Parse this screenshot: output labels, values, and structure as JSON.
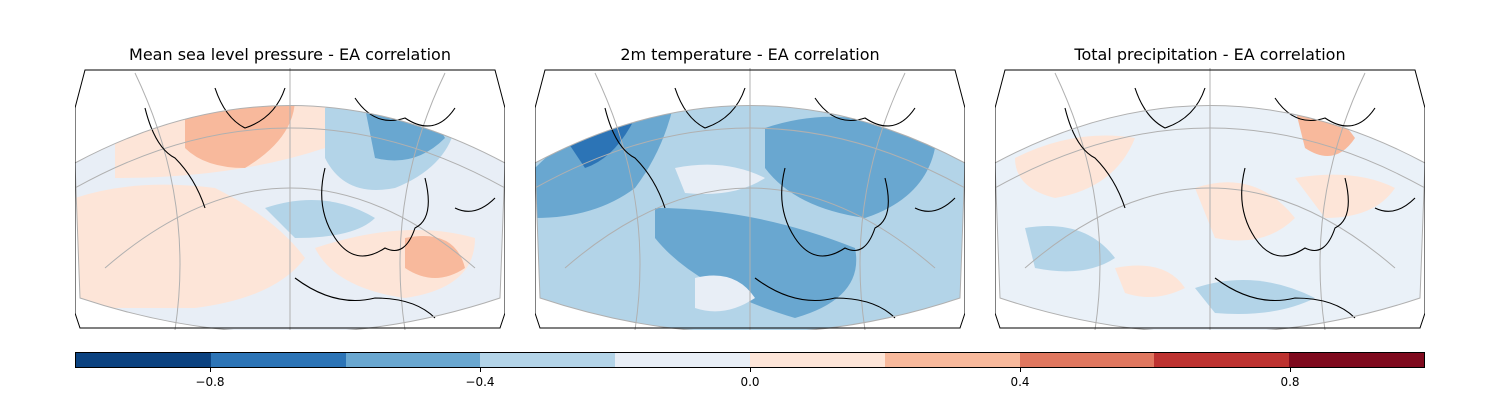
{
  "panels": [
    {
      "title": "Mean sea level pressure - EA correlation",
      "field": "msl",
      "base_color": "#e8eef6"
    },
    {
      "title": "2m temperature - EA correlation",
      "field": "t2m",
      "base_color": "#b3d4e8"
    },
    {
      "title": "Total precipitation - EA correlation",
      "field": "tp",
      "base_color": "#eaf1f8"
    }
  ],
  "colorbar": {
    "bins": [
      -1.0,
      -0.8,
      -0.6,
      -0.4,
      -0.2,
      0.0,
      0.2,
      0.4,
      0.6,
      0.8,
      1.0
    ],
    "colors": [
      "#0b4280",
      "#2c74b6",
      "#69a7d0",
      "#b3d4e8",
      "#e8eef6",
      "#fde5d8",
      "#f8b99c",
      "#e0775f",
      "#bd3230",
      "#7f0a1e"
    ],
    "tick_labels": [
      "−0.8",
      "−0.4",
      "0.0",
      "0.4",
      "0.8"
    ],
    "tick_values": [
      -0.8,
      -0.4,
      0.0,
      0.4,
      0.8
    ]
  }
}
